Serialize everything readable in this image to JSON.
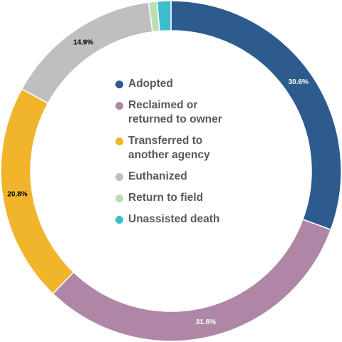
{
  "chart_data": {
    "type": "donut",
    "categories": [
      "Adopted",
      "Reclaimed or returned to owner",
      "Transferred to another agency",
      "Euthanized",
      "Return to field",
      "Unassisted death"
    ],
    "values": [
      30.6,
      31.6,
      20.8,
      14.9,
      0.8,
      1.3
    ],
    "value_labels": [
      "30.6%",
      "31.6%",
      "20.8%",
      "14.9%",
      null,
      null
    ],
    "colors": [
      "#2e5b8d",
      "#b086a7",
      "#f0b52a",
      "#bfbfbf",
      "#b9dfb1",
      "#3cbdcc"
    ]
  }
}
